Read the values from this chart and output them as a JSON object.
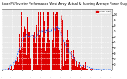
{
  "title": "Solar PV/Inverter Performance West Array  Actual & Running Average Power Output",
  "title_fontsize": 2.8,
  "bar_color": "#dd0000",
  "avg_line_color": "#0055ff",
  "avg_line_style": "--",
  "background_color": "#ffffff",
  "plot_bg_color": "#e8e8e8",
  "grid_color": "#ffffff",
  "ylim": [
    0,
    110
  ],
  "ytick_values": [
    10,
    20,
    30,
    40,
    50,
    60,
    70,
    80,
    90,
    100
  ],
  "ytick_labels": [
    "10",
    "20",
    "30",
    "40",
    "50",
    "60",
    "70",
    "80",
    "90",
    "100"
  ],
  "legend_labels": [
    "Actual Power",
    "Running Avg"
  ],
  "legend_colors": [
    "#dd0000",
    "#0055ff"
  ],
  "n_bars": 144,
  "seed": 12
}
